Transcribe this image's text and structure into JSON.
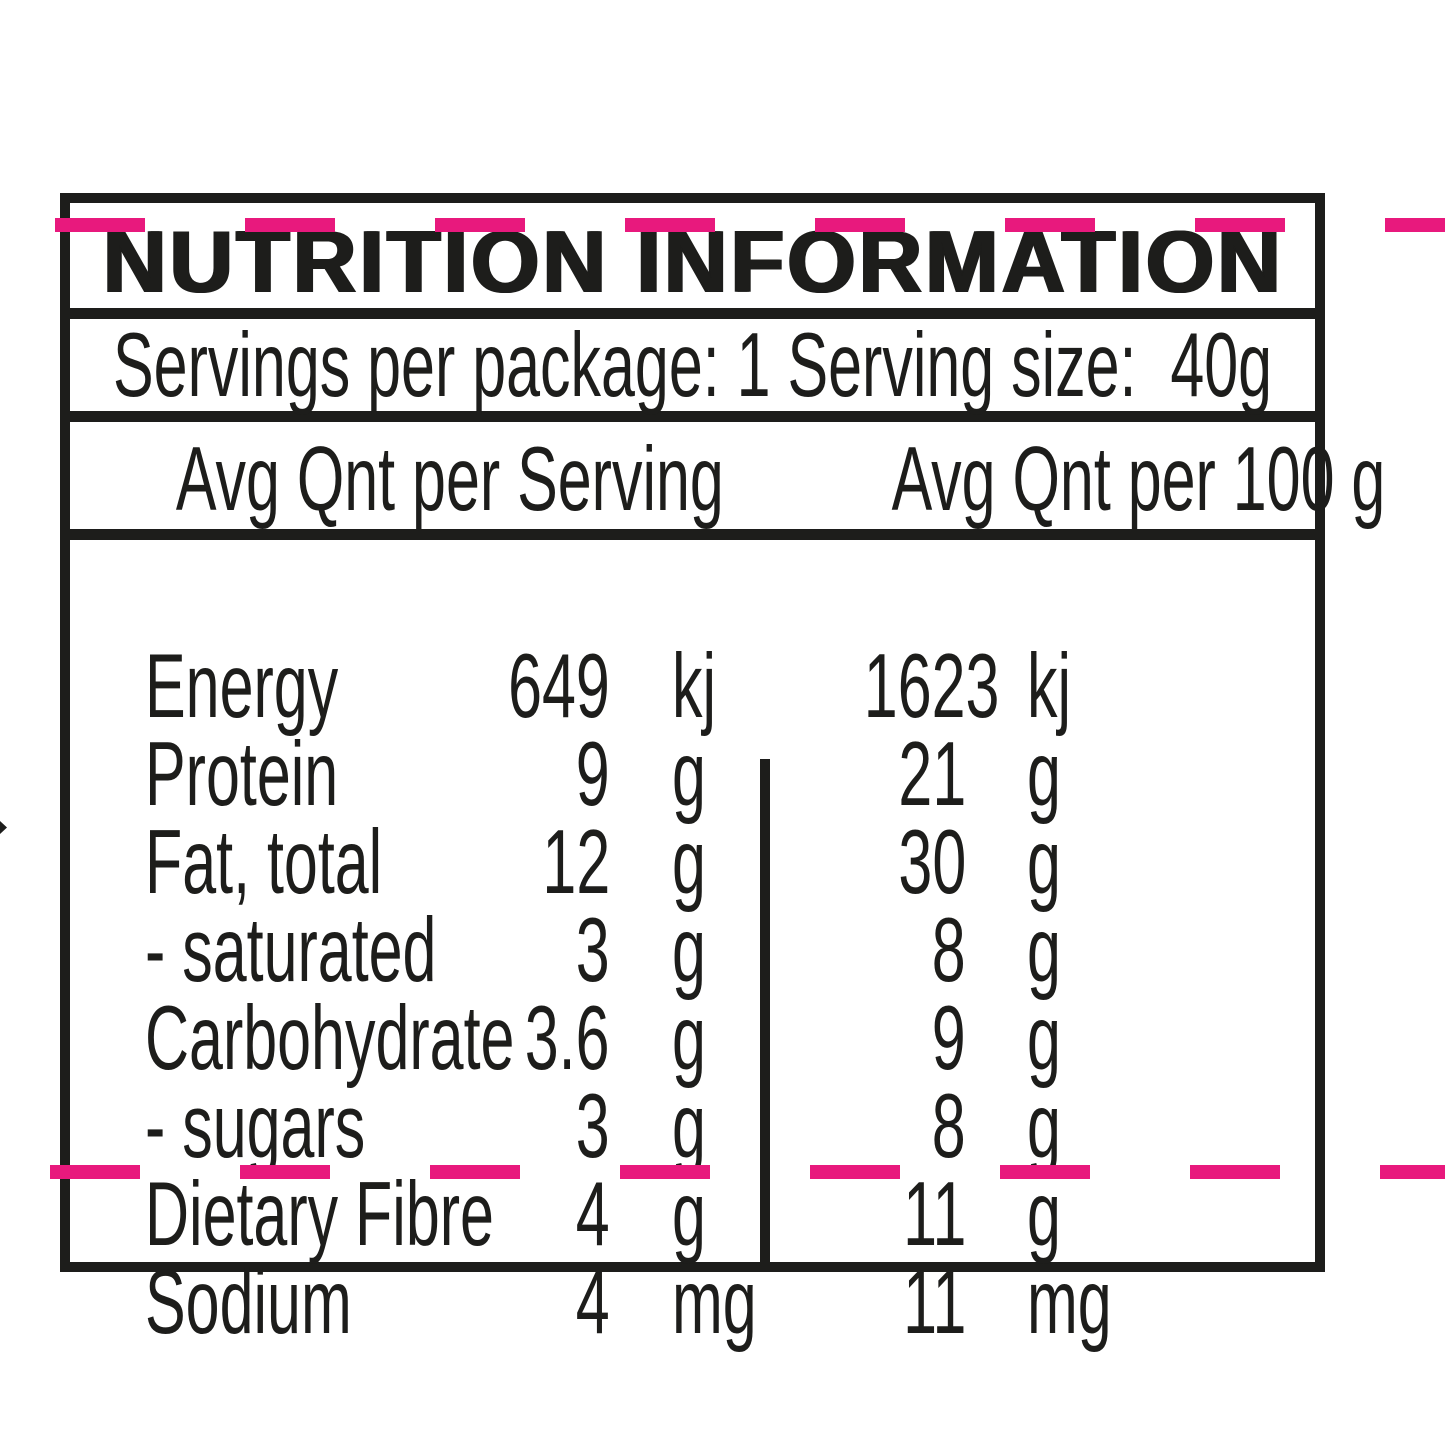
{
  "colors": {
    "pink": "#e8197d",
    "ink": "#1d1d1b",
    "paper": "#ffffff"
  },
  "panel": {
    "title": "NUTRITION INFORMATION",
    "servings_line": "Servings per package: 1 Serving size:  40g",
    "column_headers": {
      "per_serving": "Avg Qnt per Serving",
      "per_100g": "Avg Qnt per 100 g"
    },
    "rows": [
      {
        "nutrient": "Energy",
        "serving_value": "649",
        "serving_unit": "kj",
        "per100_value": "1623",
        "per100_unit": "kj"
      },
      {
        "nutrient": "Protein",
        "serving_value": "9",
        "serving_unit": "g",
        "per100_value": "21",
        "per100_unit": "g"
      },
      {
        "nutrient": "Fat, total",
        "serving_value": "12",
        "serving_unit": "g",
        "per100_value": "30",
        "per100_unit": "g"
      },
      {
        "nutrient": "- saturated",
        "serving_value": "3",
        "serving_unit": "g",
        "per100_value": "8",
        "per100_unit": "g"
      },
      {
        "nutrient": "Carbohydrate",
        "serving_value": "3.6",
        "serving_unit": "g",
        "per100_value": "9",
        "per100_unit": "g"
      },
      {
        "nutrient": "- sugars",
        "serving_value": "3",
        "serving_unit": "g",
        "per100_value": "8",
        "per100_unit": "g"
      },
      {
        "nutrient": "Dietary Fibre",
        "serving_value": "4",
        "serving_unit": "g",
        "per100_value": "11",
        "per100_unit": "g"
      },
      {
        "nutrient": "Sodium",
        "serving_value": "4",
        "serving_unit": "mg",
        "per100_value": "11",
        "per100_unit": "mg"
      }
    ]
  }
}
